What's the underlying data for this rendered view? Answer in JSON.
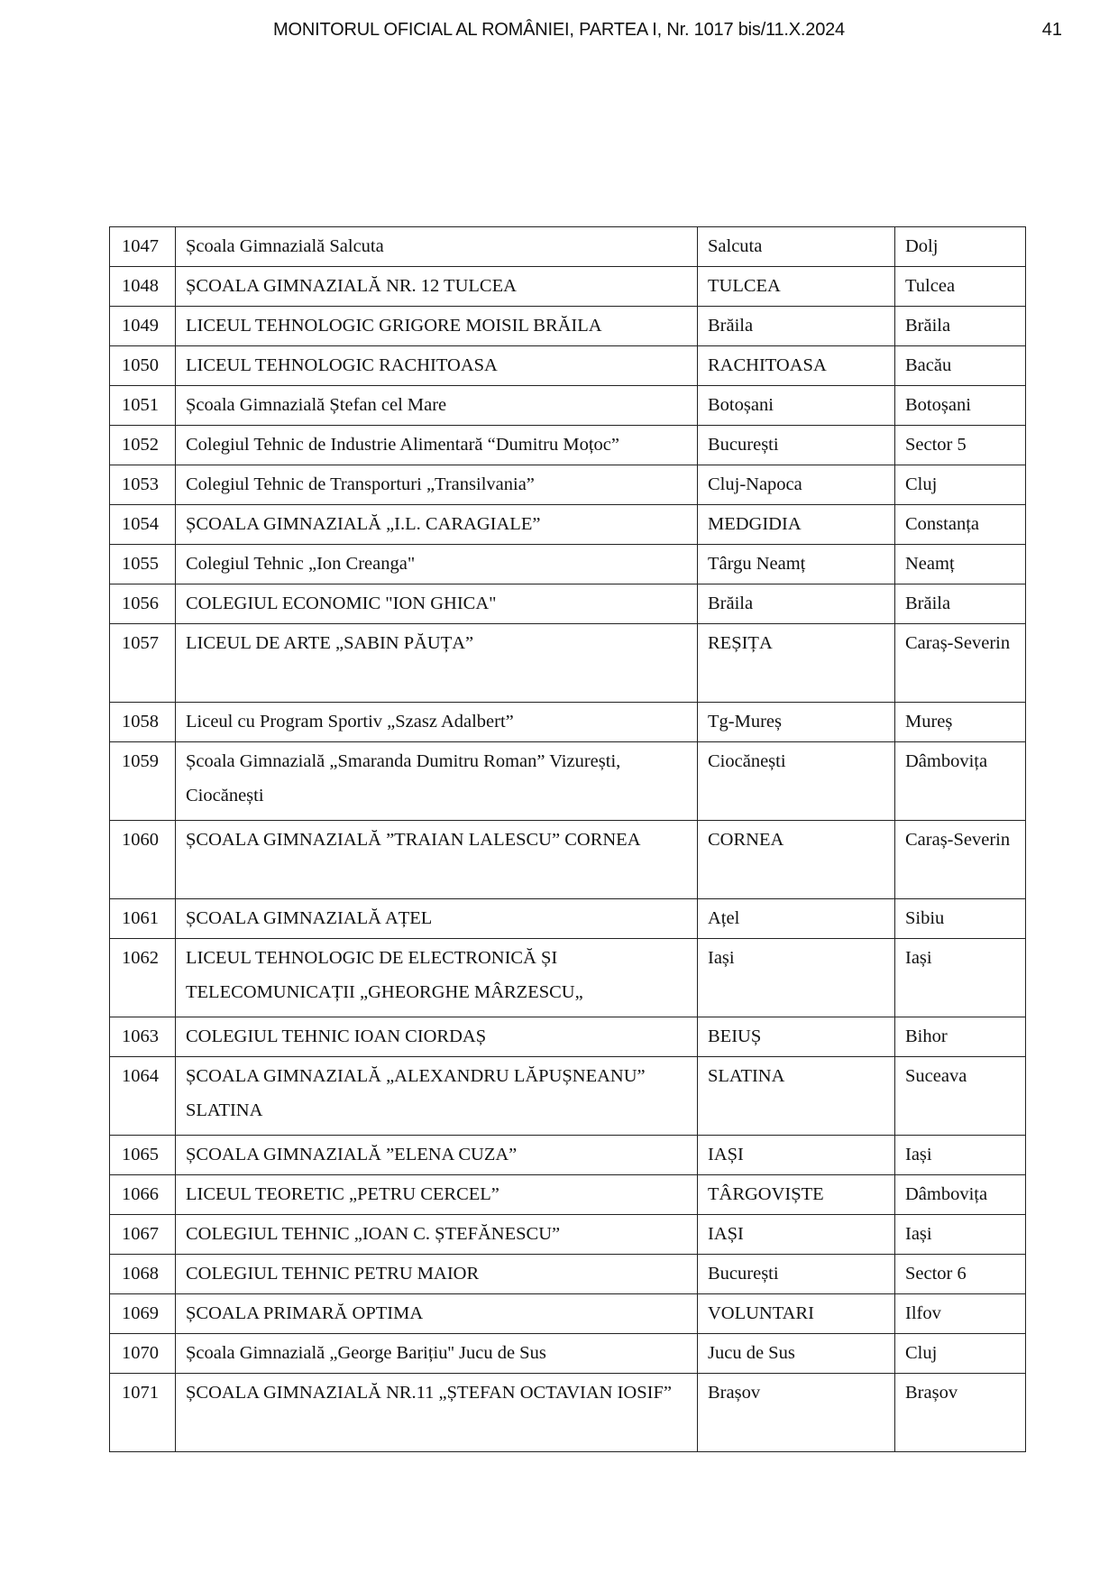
{
  "header": {
    "title": "MONITORUL OFICIAL AL ROMÂNIEI, PARTEA I, Nr. 1017 bis/11.X.2024",
    "page_number": "41"
  },
  "table": {
    "rows": [
      {
        "nr": "1047",
        "school": "Școala Gimnazială Salcuta",
        "locality": "Salcuta",
        "county": "Dolj",
        "lines": 1
      },
      {
        "nr": "1048",
        "school": "ȘCOALA GIMNAZIALĂ NR. 12  TULCEA",
        "locality": "TULCEA",
        "county": "Tulcea",
        "lines": 1
      },
      {
        "nr": "1049",
        "school": "LICEUL TEHNOLOGIC GRIGORE MOISIL BRĂILA",
        "locality": "Brăila",
        "county": "Brăila",
        "lines": 1
      },
      {
        "nr": "1050",
        "school": "LICEUL TEHNOLOGIC RACHITOASA",
        "locality": "RACHITOASA",
        "county": "Bacău",
        "lines": 1
      },
      {
        "nr": "1051",
        "school": "Școala Gimnazială Ștefan cel Mare",
        "locality": "Botoșani",
        "county": "Botoșani",
        "lines": 1
      },
      {
        "nr": "1052",
        "school": "Colegiul Tehnic de Industrie Alimentară “Dumitru Moțoc”",
        "locality": "București",
        "county": "Sector 5",
        "lines": 1
      },
      {
        "nr": "1053",
        "school": "Colegiul Tehnic de Transporturi „Transilvania”",
        "locality": "Cluj-Napoca",
        "county": "Cluj",
        "lines": 1
      },
      {
        "nr": "1054",
        "school": "ȘCOALA GIMNAZIALĂ „I.L. CARAGIALE”",
        "locality": "MEDGIDIA",
        "county": "Constanța",
        "lines": 1
      },
      {
        "nr": "1055",
        "school": "Colegiul Tehnic „Ion Creanga\"",
        "locality": "Târgu Neamț",
        "county": "Neamț",
        "lines": 1
      },
      {
        "nr": "1056",
        "school": "COLEGIUL ECONOMIC \"ION GHICA\"",
        "locality": "Brăila",
        "county": "Brăila",
        "lines": 1
      },
      {
        "nr": "1057",
        "school": "LICEUL DE ARTE „SABIN PĂUȚA”",
        "locality": "REȘIȚA",
        "county": "Caraș-Severin",
        "lines": 2
      },
      {
        "nr": "1058",
        "school": "Liceul cu Program Sportiv „Szasz Adalbert”",
        "locality": "Tg-Mureș",
        "county": "Mureș",
        "lines": 1
      },
      {
        "nr": "1059",
        "school": "Școala Gimnazială „Smaranda Dumitru Roman” Vizurești, Ciocănești",
        "locality": "Ciocănești",
        "county": "Dâmbovița",
        "lines": 2
      },
      {
        "nr": "1060",
        "school": "ȘCOALA GIMNAZIALĂ ”TRAIAN LALESCU”  CORNEA",
        "locality": "CORNEA",
        "county": "Caraș-Severin",
        "lines": 2
      },
      {
        "nr": "1061",
        "school": "ȘCOALA GIMNAZIALĂ AȚEL",
        "locality": "Ațel",
        "county": "Sibiu",
        "lines": 1
      },
      {
        "nr": "1062",
        "school": "LICEUL TEHNOLOGIC DE ELECTRONICĂ ȘI TELECOMUNICAȚII „GHEORGHE MÂRZESCU„",
        "locality": "Iași",
        "county": "Iași",
        "lines": 2
      },
      {
        "nr": "1063",
        "school": "COLEGIUL TEHNIC IOAN CIORDAȘ",
        "locality": "BEIUȘ",
        "county": "Bihor",
        "lines": 1
      },
      {
        "nr": "1064",
        "school": "ȘCOALA GIMNAZIALĂ „ALEXANDRU LĂPUȘNEANU” SLATINA",
        "locality": "SLATINA",
        "county": "Suceava",
        "lines": 2
      },
      {
        "nr": "1065",
        "school": "ȘCOALA GIMNAZIALĂ ”ELENA CUZA”",
        "locality": "IAȘI",
        "county": "Iași",
        "lines": 1
      },
      {
        "nr": "1066",
        "school": "LICEUL TEORETIC „PETRU CERCEL”",
        "locality": "TÂRGOVIȘTE",
        "county": "Dâmbovița",
        "lines": 1
      },
      {
        "nr": "1067",
        "school": "COLEGIUL TEHNIC „IOAN C. ȘTEFĂNESCU”",
        "locality": "IAȘI",
        "county": "Iași",
        "lines": 1
      },
      {
        "nr": "1068",
        "school": "COLEGIUL TEHNIC PETRU MAIOR",
        "locality": "București",
        "county": "Sector 6",
        "lines": 1
      },
      {
        "nr": "1069",
        "school": "ȘCOALA PRIMARĂ OPTIMA",
        "locality": "VOLUNTARI",
        "county": "Ilfov",
        "lines": 1
      },
      {
        "nr": "1070",
        "school": "Școala Gimnazială „George Barițiu'' Jucu de Sus",
        "locality": "Jucu de Sus",
        "county": "Cluj",
        "lines": 1
      },
      {
        "nr": "1071",
        "school": "ȘCOALA GIMNAZIALĂ NR.11 „ȘTEFAN OCTAVIAN IOSIF”",
        "locality": "Brașov",
        "county": "Brașov",
        "lines": 2
      }
    ]
  }
}
